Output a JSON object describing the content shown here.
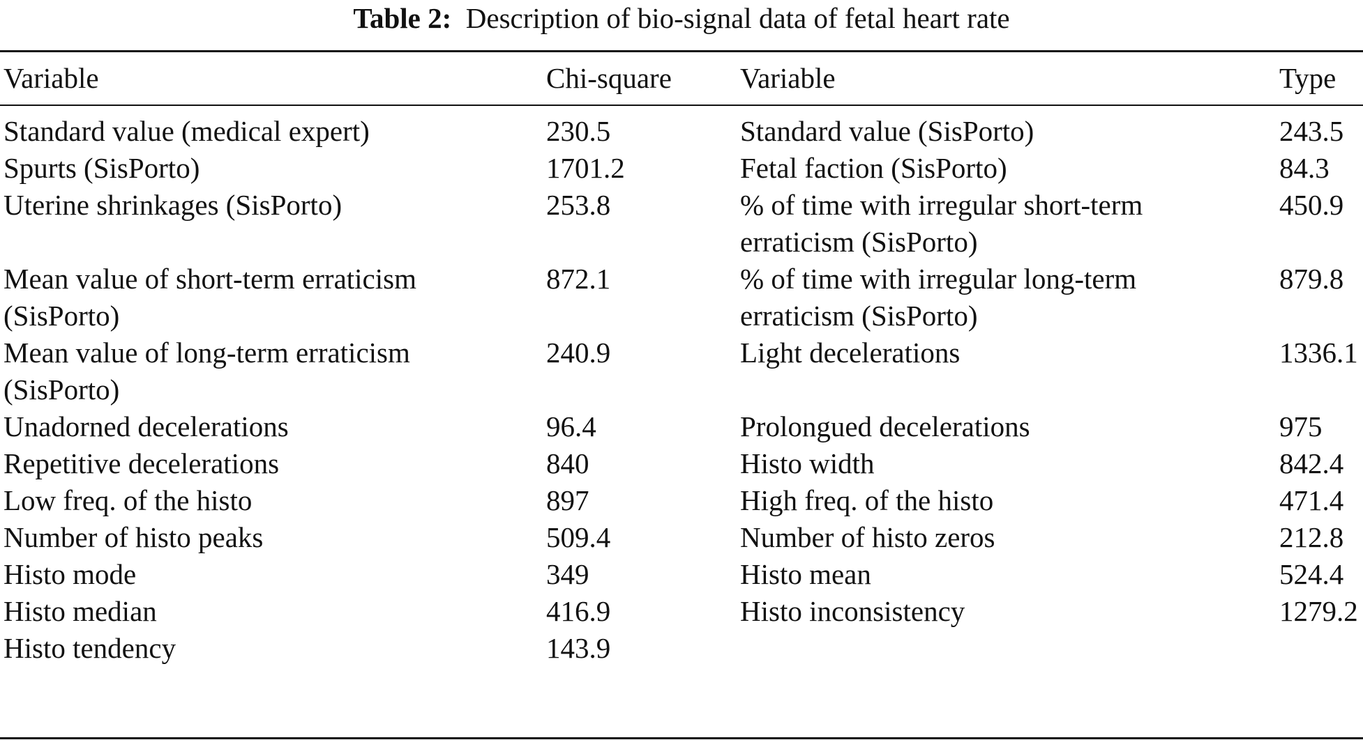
{
  "caption": {
    "label": "Table 2:",
    "text": "Description of bio-signal data of fetal heart rate"
  },
  "headers": [
    "Variable",
    "Chi-square",
    "Variable",
    "Type"
  ],
  "rows": [
    {
      "v1": [
        "Standard value (medical expert)"
      ],
      "c1": "230.5",
      "v2": [
        "Standard value (SisPorto)"
      ],
      "c2": "243.5"
    },
    {
      "v1": [
        "Spurts (SisPorto)"
      ],
      "c1": "1701.2",
      "v2": [
        "Fetal faction (SisPorto)"
      ],
      "c2": "84.3"
    },
    {
      "v1": [
        "Uterine shrinkages (SisPorto)"
      ],
      "c1": "253.8",
      "v2": [
        "% of time with irregular short-term",
        "erraticism (SisPorto)"
      ],
      "c2": "450.9"
    },
    {
      "v1": [
        "Mean value of short-term erraticism",
        "(SisPorto)"
      ],
      "c1": "872.1",
      "v2": [
        "% of time with irregular long-term",
        "erraticism (SisPorto)"
      ],
      "c2": "879.8"
    },
    {
      "v1": [
        "Mean value of long-term erraticism",
        "(SisPorto)"
      ],
      "c1": "240.9",
      "v2": [
        "Light decelerations"
      ],
      "c2": "1336.1"
    },
    {
      "v1": [
        "Unadorned decelerations"
      ],
      "c1": "96.4",
      "v2": [
        "Prolongued decelerations"
      ],
      "c2": "975"
    },
    {
      "v1": [
        "Repetitive decelerations"
      ],
      "c1": "840",
      "v2": [
        "Histo width"
      ],
      "c2": "842.4"
    },
    {
      "v1": [
        "Low freq. of the histo"
      ],
      "c1": "897",
      "v2": [
        "High freq. of the histo"
      ],
      "c2": "471.4"
    },
    {
      "v1": [
        "Number of histo peaks"
      ],
      "c1": "509.4",
      "v2": [
        "Number of histo zeros"
      ],
      "c2": "212.8"
    },
    {
      "v1": [
        "Histo mode"
      ],
      "c1": "349",
      "v2": [
        "Histo mean"
      ],
      "c2": "524.4"
    },
    {
      "v1": [
        "Histo median"
      ],
      "c1": "416.9",
      "v2": [
        "Histo inconsistency"
      ],
      "c2": "1279.2"
    },
    {
      "v1": [
        "Histo tendency"
      ],
      "c1": "143.9",
      "v2": [
        ""
      ],
      "c2": ""
    }
  ]
}
